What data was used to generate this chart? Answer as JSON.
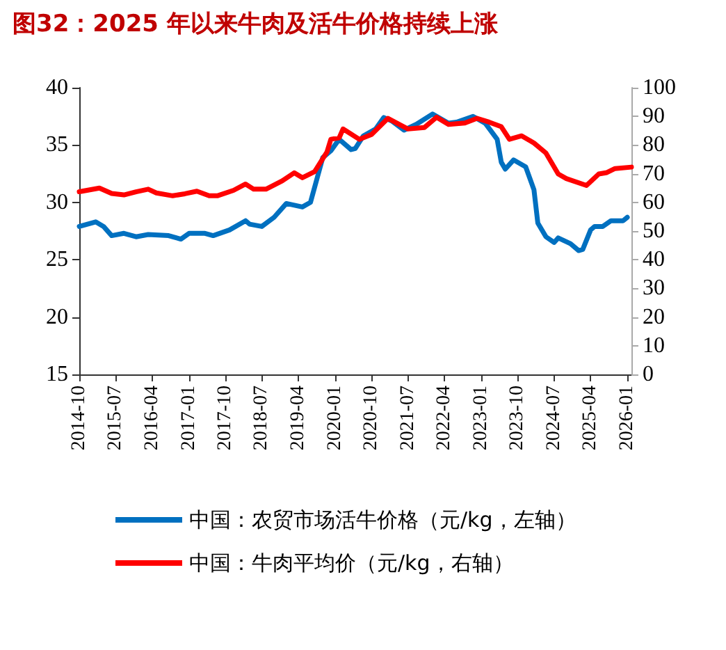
{
  "chart_data": {
    "type": "line",
    "title": "图32：2025 年以来牛肉及活牛价格持续上涨",
    "xlim": [
      "2014-10",
      "2026-02"
    ],
    "xticks": [
      "2014-10",
      "2015-07",
      "2016-04",
      "2017-01",
      "2017-10",
      "2018-07",
      "2019-04",
      "2020-01",
      "2020-10",
      "2021-07",
      "2022-04",
      "2023-01",
      "2023-10",
      "2024-07",
      "2025-04",
      "2026-01"
    ],
    "ylim": [
      15,
      40
    ],
    "yticks": [
      15,
      20,
      25,
      30,
      35,
      40
    ],
    "y2lim": [
      0,
      100
    ],
    "y2ticks": [
      0,
      10,
      20,
      30,
      40,
      50,
      60,
      70,
      80,
      90,
      100
    ],
    "grid": false,
    "legend": "bottom",
    "marker": "none",
    "line_style": "solid",
    "series": [
      {
        "name": "中国：农贸市场活牛价格（元/kg，左轴）",
        "color": "#0070c0",
        "axis": "y",
        "x": [
          "2014-10",
          "2015-02",
          "2015-04",
          "2015-06",
          "2015-09",
          "2015-12",
          "2016-03",
          "2016-08",
          "2016-11",
          "2017-01",
          "2017-05",
          "2017-07",
          "2017-11",
          "2018-03",
          "2018-04",
          "2018-07",
          "2018-10",
          "2019-01",
          "2019-05",
          "2019-07",
          "2019-10",
          "2019-12",
          "2020-02",
          "2020-05",
          "2020-06",
          "2020-08",
          "2020-11",
          "2021-01",
          "2021-03",
          "2021-06",
          "2021-09",
          "2022-01",
          "2022-05",
          "2022-07",
          "2022-11",
          "2023-02",
          "2023-05",
          "2023-06",
          "2023-07",
          "2023-09",
          "2023-12",
          "2024-02",
          "2024-03",
          "2024-05",
          "2024-07",
          "2024-08",
          "2024-11",
          "2025-01",
          "2025-02",
          "2025-04",
          "2025-05",
          "2025-07",
          "2025-09",
          "2025-12",
          "2026-01"
        ],
        "values": [
          27.9,
          28.3,
          27.9,
          27.1,
          27.3,
          27.0,
          27.2,
          27.1,
          26.8,
          27.3,
          27.3,
          27.1,
          27.6,
          28.4,
          28.1,
          27.9,
          28.7,
          29.9,
          29.6,
          30.0,
          33.9,
          34.5,
          35.5,
          34.6,
          34.7,
          35.8,
          36.4,
          37.4,
          37.1,
          36.3,
          36.8,
          37.7,
          36.9,
          37.0,
          37.5,
          36.9,
          35.5,
          33.5,
          32.9,
          33.7,
          33.1,
          31.1,
          28.2,
          27.0,
          26.5,
          26.9,
          26.4,
          25.8,
          25.9,
          27.6,
          27.9,
          27.9,
          28.4,
          28.4,
          28.7
        ]
      },
      {
        "name": "中国：牛肉平均价（元/kg，右轴）",
        "color": "#ff0000",
        "axis": "y2",
        "x": [
          "2014-10",
          "2015-03",
          "2015-06",
          "2015-09",
          "2015-12",
          "2016-03",
          "2016-05",
          "2016-09",
          "2016-12",
          "2017-03",
          "2017-06",
          "2017-08",
          "2017-12",
          "2018-03",
          "2018-05",
          "2018-08",
          "2018-12",
          "2019-03",
          "2019-05",
          "2019-08",
          "2019-11",
          "2019-12",
          "2020-02",
          "2020-03",
          "2020-07",
          "2020-10",
          "2021-02",
          "2021-07",
          "2021-11",
          "2022-02",
          "2022-05",
          "2022-09",
          "2022-12",
          "2023-03",
          "2023-06",
          "2023-08",
          "2023-11",
          "2024-02",
          "2024-05",
          "2024-08",
          "2024-10",
          "2025-03",
          "2025-06",
          "2025-08",
          "2025-10",
          "2026-02"
        ],
        "values": [
          63.7,
          65.0,
          63.1,
          62.6,
          63.7,
          64.6,
          63.3,
          62.3,
          63.0,
          63.9,
          62.3,
          62.3,
          64.2,
          66.4,
          64.6,
          64.6,
          67.5,
          70.3,
          68.6,
          70.7,
          77.5,
          82.0,
          82.5,
          85.6,
          82.0,
          83.7,
          89.3,
          85.6,
          86.1,
          89.7,
          87.2,
          87.7,
          89.3,
          88.0,
          86.4,
          82.0,
          83.2,
          80.7,
          77.2,
          69.9,
          68.3,
          65.9,
          69.9,
          70.4,
          71.8,
          72.3
        ]
      }
    ]
  }
}
